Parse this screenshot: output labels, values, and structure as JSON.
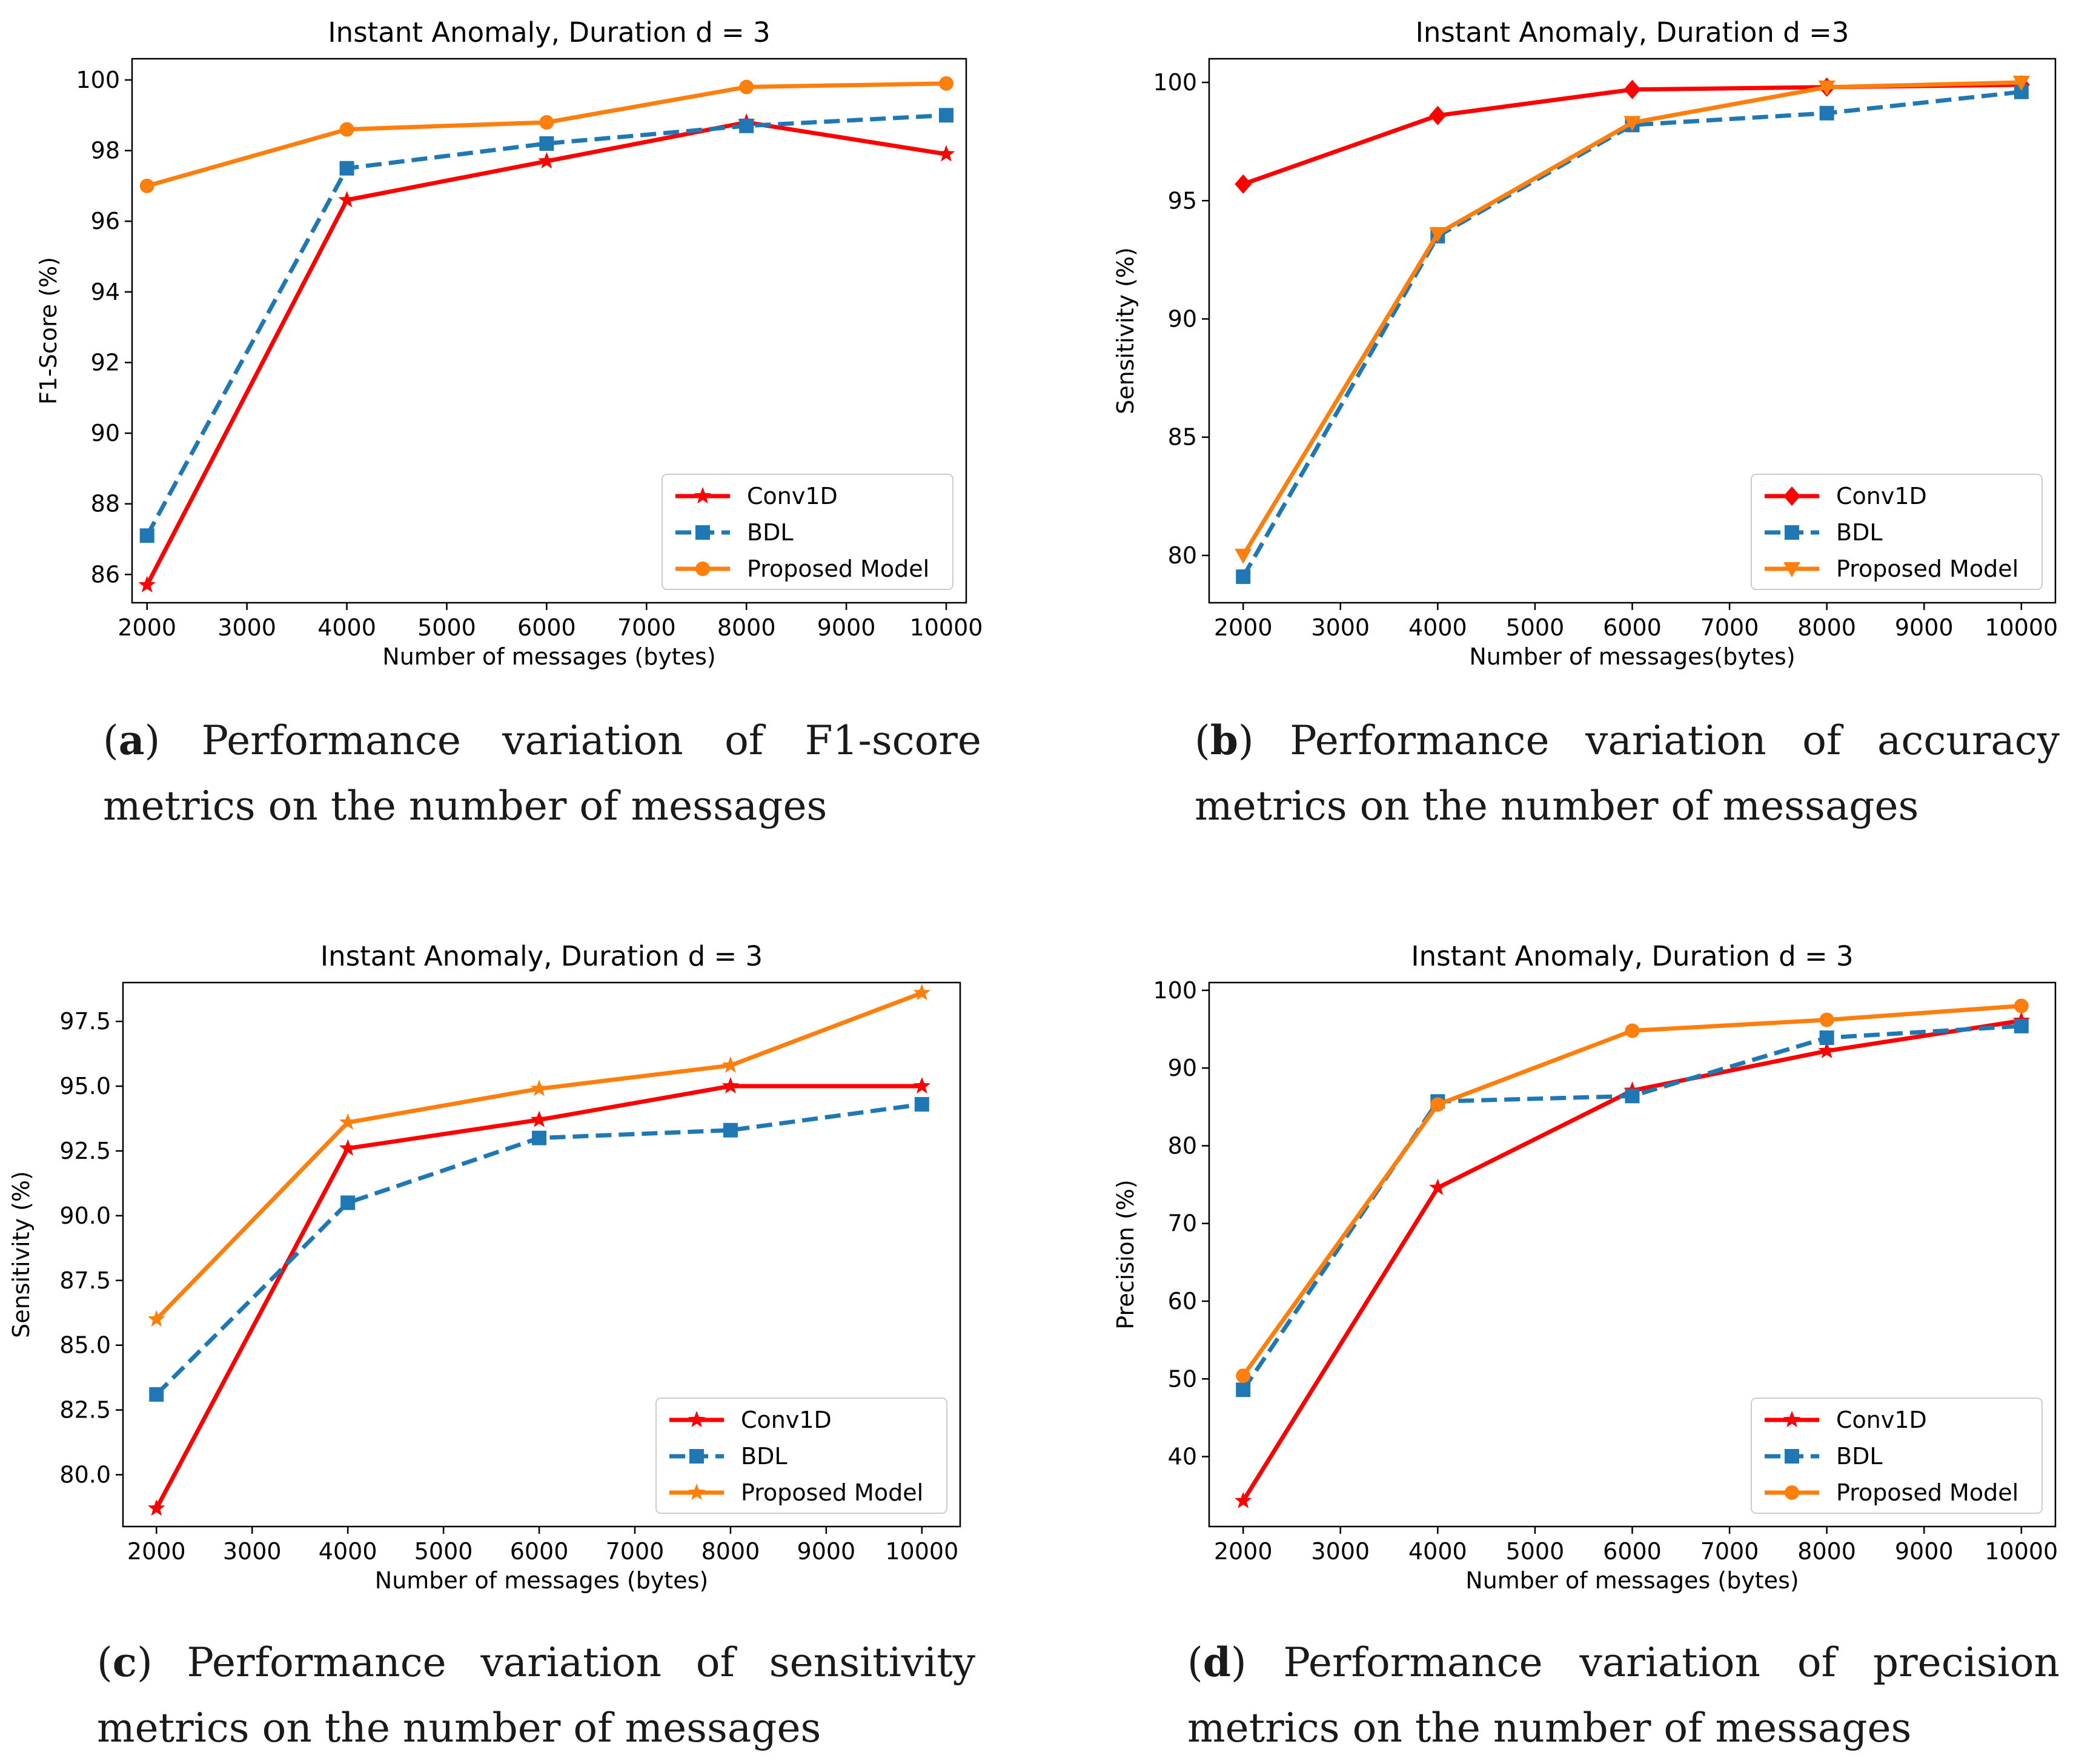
{
  "figure": {
    "panels": [
      {
        "caption": {
          "letter": "a",
          "text": "Performance variation of F1-score metrics on the number of messages"
        }
      },
      {
        "caption": {
          "letter": "b",
          "text": "Performance variation of accuracy metrics on the number of messages"
        }
      },
      {
        "caption": {
          "letter": "c",
          "text": "Performance variation of sensitivity metrics on the number of messages"
        }
      },
      {
        "caption": {
          "letter": "d",
          "text": "Performance variation of precision metrics on the number of messages"
        }
      }
    ]
  },
  "colors": {
    "conv1d": "#ff0000",
    "bdl": "#1f77b4",
    "proposed": "#ff7f0e"
  },
  "chart_data": [
    {
      "type": "line",
      "title": "Instant Anomaly, Duration d = 3",
      "xlabel": "Number of messages (bytes)",
      "ylabel": "F1-Score (%)",
      "xlim": [
        1850,
        10200
      ],
      "ylim": [
        85.2,
        100.6
      ],
      "xticks": [
        2000,
        3000,
        4000,
        5000,
        6000,
        7000,
        8000,
        9000,
        10000
      ],
      "yticks": [
        86,
        88,
        90,
        92,
        94,
        96,
        98,
        100
      ],
      "ytick_labels": [
        "86",
        "88",
        "90",
        "92",
        "94",
        "96",
        "98",
        "100"
      ],
      "legend_position": "lower-right",
      "x": [
        2000,
        4000,
        6000,
        8000,
        10000
      ],
      "series": [
        {
          "name": "Conv1D",
          "color": "#ff0000",
          "linestyle": "solid",
          "marker": "star",
          "values": [
            85.7,
            96.6,
            97.7,
            98.8,
            97.9
          ]
        },
        {
          "name": "BDL",
          "color": "#1f77b4",
          "linestyle": "dashed",
          "marker": "square",
          "values": [
            87.1,
            97.5,
            98.2,
            98.7,
            99.0
          ]
        },
        {
          "name": "Proposed Model",
          "color": "#ff7f0e",
          "linestyle": "solid",
          "marker": "circle",
          "values": [
            97.0,
            98.6,
            98.8,
            99.8,
            99.9
          ]
        }
      ]
    },
    {
      "type": "line",
      "title": "Instant Anomaly, Duration d =3",
      "xlabel": "Number of messages(bytes)",
      "ylabel": "Sensitivity (%)",
      "xlim": [
        1650,
        10350
      ],
      "ylim": [
        78.0,
        101.0
      ],
      "xticks": [
        2000,
        3000,
        4000,
        5000,
        6000,
        7000,
        8000,
        9000,
        10000
      ],
      "yticks": [
        80,
        85,
        90,
        95,
        100
      ],
      "ytick_labels": [
        "80",
        "85",
        "90",
        "95",
        "100"
      ],
      "legend_position": "lower-right",
      "x": [
        2000,
        4000,
        6000,
        8000,
        10000
      ],
      "series": [
        {
          "name": "Conv1D",
          "color": "#ff0000",
          "linestyle": "solid",
          "marker": "diamond",
          "values": [
            95.7,
            98.6,
            99.7,
            99.8,
            99.9
          ]
        },
        {
          "name": "BDL",
          "color": "#1f77b4",
          "linestyle": "dashed",
          "marker": "square",
          "values": [
            79.1,
            93.5,
            98.2,
            98.7,
            99.6
          ]
        },
        {
          "name": "Proposed Model",
          "color": "#ff7f0e",
          "linestyle": "solid",
          "marker": "triangle-down",
          "values": [
            80.0,
            93.6,
            98.3,
            99.8,
            100.0
          ]
        }
      ]
    },
    {
      "type": "line",
      "title": "Instant Anomaly, Duration d = 3",
      "xlabel": "Number of messages (bytes)",
      "ylabel": "Sensitivity (%)",
      "xlim": [
        1650,
        10400
      ],
      "ylim": [
        78.0,
        99.0
      ],
      "xticks": [
        2000,
        3000,
        4000,
        5000,
        6000,
        7000,
        8000,
        9000,
        10000
      ],
      "yticks": [
        80.0,
        82.5,
        85.0,
        87.5,
        90.0,
        92.5,
        95.0,
        97.5
      ],
      "ytick_labels": [
        "80.0",
        "82.5",
        "85.0",
        "87.5",
        "90.0",
        "92.5",
        "95.0",
        "97.5"
      ],
      "legend_position": "lower-right",
      "x": [
        2000,
        4000,
        6000,
        8000,
        10000
      ],
      "series": [
        {
          "name": "Conv1D",
          "color": "#ff0000",
          "linestyle": "solid",
          "marker": "star",
          "values": [
            78.7,
            92.6,
            93.7,
            95.0,
            95.0
          ]
        },
        {
          "name": "BDL",
          "color": "#1f77b4",
          "linestyle": "dashed",
          "marker": "square",
          "values": [
            83.1,
            90.5,
            93.0,
            93.3,
            94.3
          ]
        },
        {
          "name": "Proposed Model",
          "color": "#ff7f0e",
          "linestyle": "solid",
          "marker": "star",
          "values": [
            86.0,
            93.6,
            94.9,
            95.8,
            98.6
          ]
        }
      ]
    },
    {
      "type": "line",
      "title": "Instant Anomaly, Duration d = 3",
      "xlabel": "Number of messages (bytes)",
      "ylabel": "Precision (%)",
      "xlim": [
        1650,
        10350
      ],
      "ylim": [
        31.0,
        101.0
      ],
      "xticks": [
        2000,
        3000,
        4000,
        5000,
        6000,
        7000,
        8000,
        9000,
        10000
      ],
      "yticks": [
        40,
        50,
        60,
        70,
        80,
        90,
        100
      ],
      "ytick_labels": [
        "40",
        "50",
        "60",
        "70",
        "80",
        "90",
        "100"
      ],
      "legend_position": "lower-right",
      "x": [
        2000,
        4000,
        6000,
        8000,
        10000
      ],
      "series": [
        {
          "name": "Conv1D",
          "color": "#ff0000",
          "linestyle": "solid",
          "marker": "star",
          "values": [
            34.3,
            74.6,
            87.1,
            92.2,
            96.1
          ]
        },
        {
          "name": "BDL",
          "color": "#1f77b4",
          "linestyle": "dashed",
          "marker": "square",
          "values": [
            48.6,
            85.7,
            86.4,
            93.9,
            95.4
          ]
        },
        {
          "name": "Proposed Model",
          "color": "#ff7f0e",
          "linestyle": "solid",
          "marker": "circle",
          "values": [
            50.4,
            85.3,
            94.8,
            96.2,
            98.0
          ]
        }
      ]
    }
  ]
}
